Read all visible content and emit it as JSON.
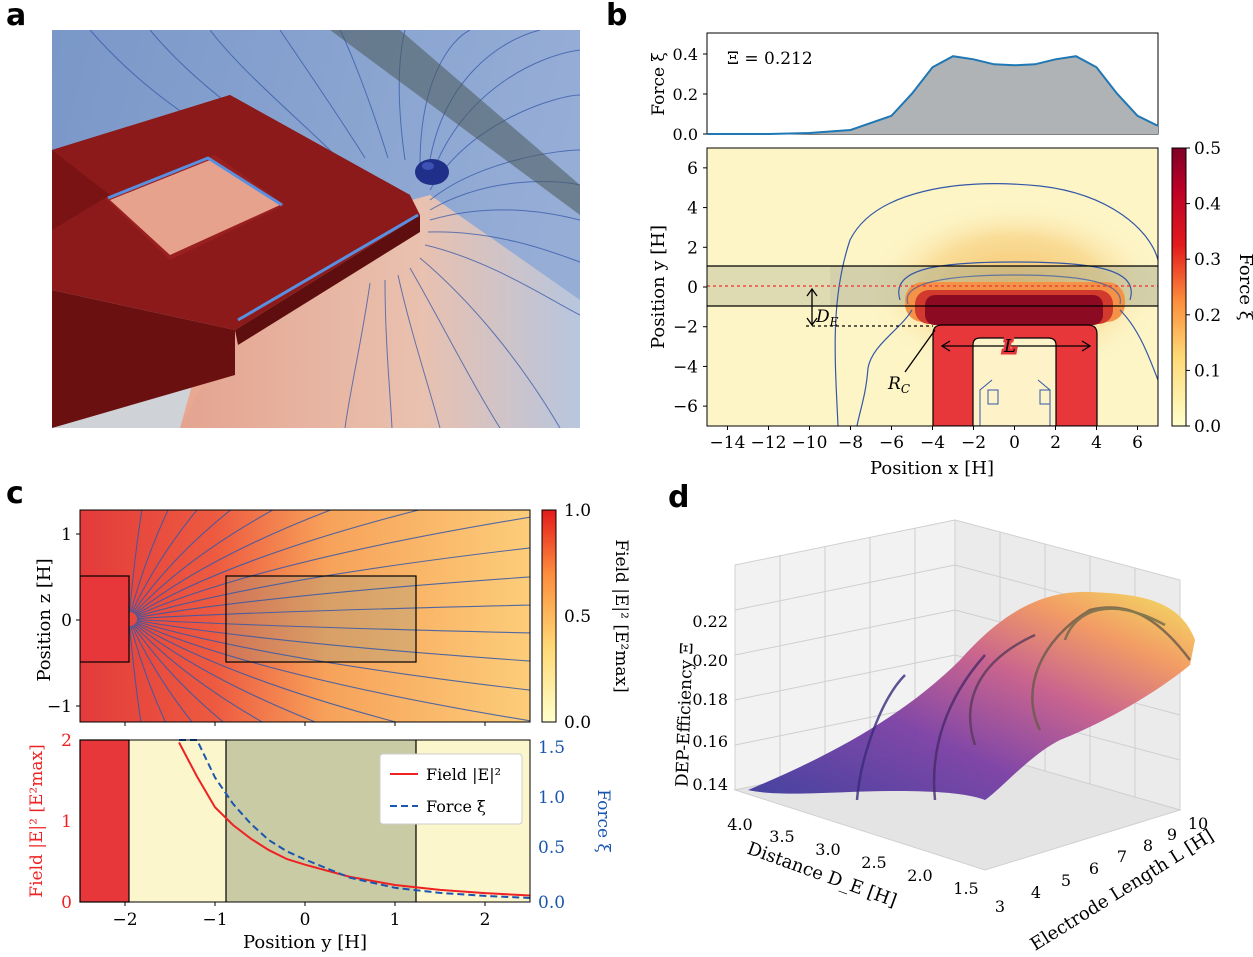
{
  "panels": {
    "a": "a",
    "b": "b",
    "c": "c",
    "d": "d"
  },
  "panel_b_force": {
    "ylabel": "Force ξ",
    "annotation": "Ξ = 0.212",
    "yticks": [
      "0.0",
      "0.2",
      "0.4"
    ]
  },
  "panel_b_map": {
    "xlabel": "Position x [H]",
    "ylabel": "Position y [H]",
    "xticks": [
      "−14",
      "−12",
      "−10",
      "−8",
      "−6",
      "−4",
      "−2",
      "0",
      "2",
      "4",
      "6"
    ],
    "yticks": [
      "6",
      "4",
      "2",
      "0",
      "−2",
      "−4",
      "−6"
    ],
    "label_DE": "D",
    "label_DE_sub": "E",
    "label_L": "L",
    "label_RC": "R",
    "label_RC_sub": "C"
  },
  "panel_b_colorbar": {
    "label": "Force ξ",
    "ticks": [
      "0.5",
      "0.4",
      "0.3",
      "0.2",
      "0.1",
      "0.0"
    ]
  },
  "panel_c_map": {
    "ylabel": "Position z [H]",
    "yticks": [
      "1",
      "0",
      "−1"
    ]
  },
  "panel_c_colorbar": {
    "label": "Field |E|² [E²max]",
    "ticks": [
      "1.0",
      "0.5",
      "0.0"
    ]
  },
  "panel_c_profile": {
    "xlabel": "Position y [H]",
    "ylabel_left": "Field |E|² [E²max]",
    "ylabel_right": "Force ξ",
    "xticks": [
      "−2",
      "−1",
      "0",
      "1",
      "2"
    ],
    "yticks_left": [
      "2",
      "1",
      "0"
    ],
    "yticks_right": [
      "1.5",
      "1.0",
      "0.5",
      "0.0"
    ],
    "legend": [
      "Field |E|²",
      "Force ξ"
    ]
  },
  "panel_d": {
    "zlabel": "DEP-Efficiency Ξ",
    "xlabel": "Distance D_E [H]",
    "ylabel": "Electrode Length L [H]",
    "zticks": [
      "0.22",
      "0.20",
      "0.18",
      "0.16",
      "0.14"
    ],
    "xticks": [
      "4.0",
      "3.5",
      "3.0",
      "2.5",
      "2.0",
      "1.5"
    ],
    "yticks": [
      "3",
      "4",
      "5",
      "6",
      "7",
      "8",
      "9",
      "10"
    ]
  },
  "chart_data": [
    {
      "type": "area",
      "panel": "b-top",
      "x": [
        -15,
        -12,
        -10,
        -8,
        -6,
        -5,
        -4,
        -3,
        -2,
        -1,
        0,
        1,
        2,
        3,
        4,
        5,
        6,
        7
      ],
      "y": [
        0,
        0,
        0.005,
        0.02,
        0.09,
        0.2,
        0.33,
        0.385,
        0.37,
        0.345,
        0.34,
        0.345,
        0.37,
        0.385,
        0.33,
        0.2,
        0.09,
        0.04
      ],
      "ylim": [
        0,
        0.5
      ],
      "xlim": [
        -15,
        7
      ],
      "color": "#1f77b4",
      "fill": "#b0b3b5"
    },
    {
      "type": "heatmap",
      "panel": "b-main",
      "xlim": [
        -15,
        7
      ],
      "ylim": [
        -7,
        7
      ],
      "colorbar_range": [
        0,
        0.5
      ],
      "colormap": "YlOrRd",
      "channel_band_y": [
        -1,
        1
      ],
      "electrode_length": 8,
      "electrode_top_y": -2
    },
    {
      "type": "heatmap",
      "panel": "c-main",
      "xlim": [
        -2.5,
        2.5
      ],
      "ylim": [
        -1.25,
        1.25
      ],
      "colorbar_range": [
        0,
        1
      ],
      "colormap": "YlOrRd"
    },
    {
      "type": "line",
      "panel": "c-bottom",
      "x": [
        -1.4,
        -1.2,
        -1.0,
        -0.8,
        -0.6,
        -0.4,
        -0.2,
        0,
        0.5,
        1.0,
        1.5,
        2.0,
        2.5
      ],
      "series": [
        {
          "name": "Field |E|²",
          "color": "#ee2222",
          "style": "solid",
          "values": [
            1.97,
            1.55,
            1.17,
            0.95,
            0.78,
            0.64,
            0.53,
            0.46,
            0.31,
            0.21,
            0.15,
            0.11,
            0.08
          ]
        },
        {
          "name": "Force ξ",
          "color": "#1a56b0",
          "style": "dashed",
          "axis": "right",
          "values": [
            2.05,
            1.63,
            1.23,
            0.97,
            0.77,
            0.61,
            0.5,
            0.42,
            0.24,
            0.14,
            0.09,
            0.06,
            0.04
          ]
        }
      ],
      "xlim": [
        -2.5,
        2.5
      ],
      "ylim": [
        0,
        2
      ],
      "ylim_right": [
        0,
        1.6
      ]
    },
    {
      "type": "surface",
      "panel": "d",
      "zlim": [
        0.13,
        0.23
      ],
      "xlim_DE": [
        1.5,
        4.0
      ],
      "ylim_L": [
        3,
        10
      ]
    }
  ]
}
